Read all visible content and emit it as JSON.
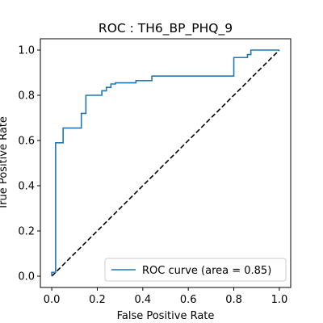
{
  "chart_data": {
    "type": "line",
    "title": "ROC : TH6_BP_PHQ_9",
    "xlabel": "False Positive Rate",
    "ylabel": "True Positive Rate",
    "xlim": [
      -0.05,
      1.05
    ],
    "ylim": [
      -0.05,
      1.05
    ],
    "xticks": [
      0.0,
      0.2,
      0.4,
      0.6,
      0.8,
      1.0
    ],
    "yticks": [
      0.0,
      0.2,
      0.4,
      0.6,
      0.8,
      1.0
    ],
    "xtick_labels": [
      "0.0",
      "0.2",
      "0.4",
      "0.6",
      "0.8",
      "1.0"
    ],
    "ytick_labels": [
      "0.0",
      "0.2",
      "0.4",
      "0.6",
      "0.8",
      "1.0"
    ],
    "grid": false,
    "legend_position": "lower-right",
    "series": [
      {
        "name": "ROC curve (area = 0.85)",
        "color": "#1f77b4",
        "style": "solid",
        "x": [
          0.0,
          0.0,
          0.017,
          0.017,
          0.05,
          0.05,
          0.13,
          0.13,
          0.15,
          0.15,
          0.22,
          0.22,
          0.24,
          0.24,
          0.26,
          0.26,
          0.28,
          0.28,
          0.37,
          0.37,
          0.44,
          0.44,
          0.8,
          0.8,
          0.86,
          0.86,
          0.875,
          0.875,
          1.0
        ],
        "y": [
          0.0,
          0.017,
          0.017,
          0.59,
          0.59,
          0.655,
          0.655,
          0.72,
          0.72,
          0.8,
          0.8,
          0.82,
          0.82,
          0.835,
          0.835,
          0.85,
          0.85,
          0.855,
          0.855,
          0.865,
          0.865,
          0.885,
          0.885,
          0.967,
          0.967,
          0.98,
          0.98,
          1.0,
          1.0
        ]
      },
      {
        "name": "",
        "color": "#000000",
        "style": "dashed",
        "x": [
          0.0,
          1.0
        ],
        "y": [
          0.0,
          1.0
        ]
      }
    ]
  }
}
